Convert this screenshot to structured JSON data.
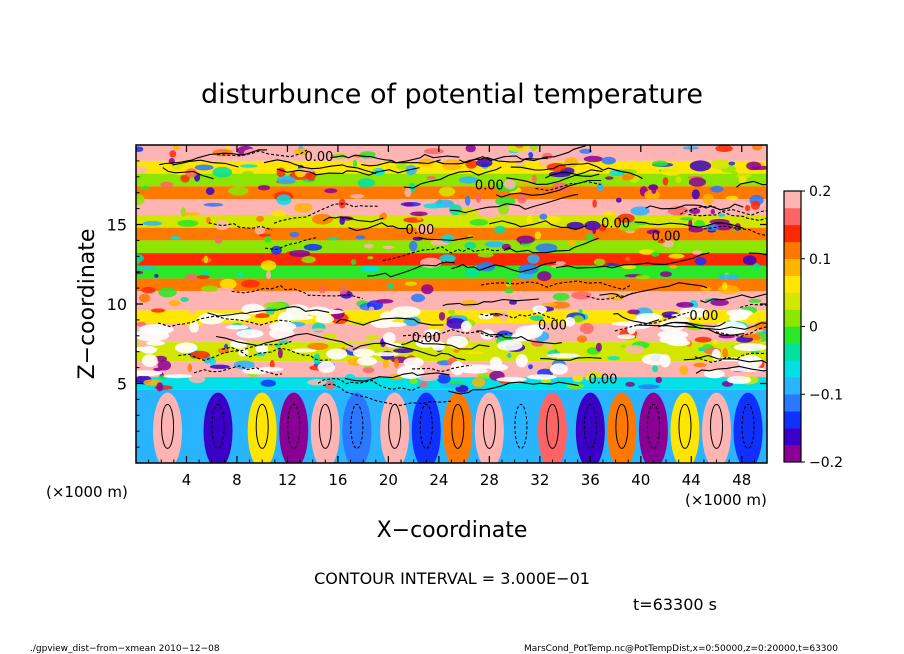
{
  "chart_data": {
    "type": "heatmap",
    "title": "disturbunce of potential temperature",
    "xlabel": "X−coordinate",
    "ylabel": "Z−coordinate",
    "x_unit_left": "(×1000 m)",
    "x_unit_right": "(×1000 m)",
    "xlim": [
      0,
      50
    ],
    "ylim": [
      0,
      20
    ],
    "x_ticks": [
      4,
      8,
      12,
      16,
      20,
      24,
      28,
      32,
      36,
      40,
      44,
      48
    ],
    "x_tick_labels": [
      "4",
      "8",
      "12",
      "16",
      "20",
      "24",
      "28",
      "32",
      "36",
      "40",
      "44",
      "48"
    ],
    "y_ticks": [
      5,
      10,
      15
    ],
    "y_tick_labels": [
      "5",
      "10",
      "15"
    ],
    "colorbar": {
      "min": -0.2,
      "max": 0.2,
      "tick_values": [
        0.2,
        0.1,
        0,
        -0.1,
        -0.2
      ],
      "tick_labels": [
        "0.2",
        "0.1",
        "0",
        "−0.1",
        "−0.2"
      ],
      "colors": [
        "#8a0096",
        "#3a00c8",
        "#1030ff",
        "#2a78ff",
        "#28b4ff",
        "#00e0e6",
        "#00e0a0",
        "#28e828",
        "#8ce600",
        "#d2e600",
        "#ffe600",
        "#ffb400",
        "#ff7800",
        "#ff2800",
        "#ff6464",
        "#ffb4b4"
      ]
    },
    "contour_label": "0.00",
    "contour_interval_text": "CONTOUR INTERVAL = 3.000E−01",
    "time_text": "t=63300 s",
    "footer_left": "./gpview_dist−from−xmean   2010−12−08",
    "footer_right": "MarsCond_PotTemp.nc@PotTempDist,x=0:50000,z=0:20000,t=63300",
    "bands": [
      {
        "z0": 19.0,
        "z1": 20.0,
        "value": 0.2
      },
      {
        "z0": 18.2,
        "z1": 19.0,
        "value": 0.05
      },
      {
        "z0": 17.4,
        "z1": 18.2,
        "value": 0.0
      },
      {
        "z0": 16.6,
        "z1": 17.4,
        "value": 0.1
      },
      {
        "z0": 15.6,
        "z1": 16.6,
        "value": 0.18
      },
      {
        "z0": 14.8,
        "z1": 15.6,
        "value": 0.04
      },
      {
        "z0": 14.0,
        "z1": 14.8,
        "value": 0.12
      },
      {
        "z0": 13.2,
        "z1": 14.0,
        "value": 0.02
      },
      {
        "z0": 12.4,
        "z1": 13.2,
        "value": 0.15
      },
      {
        "z0": 11.6,
        "z1": 12.4,
        "value": -0.02
      },
      {
        "z0": 10.8,
        "z1": 11.6,
        "value": 0.1
      },
      {
        "z0": 9.6,
        "z1": 10.8,
        "value": 0.2
      },
      {
        "z0": 8.8,
        "z1": 9.6,
        "value": 0.06
      },
      {
        "z0": 7.6,
        "z1": 8.8,
        "value": 0.2
      },
      {
        "z0": 6.4,
        "z1": 7.6,
        "value": 0.04
      },
      {
        "z0": 5.4,
        "z1": 6.4,
        "value": 0.2
      },
      {
        "z0": 4.6,
        "z1": 5.4,
        "value": -0.06
      },
      {
        "z0": 0.0,
        "z1": 4.6,
        "value": -0.1
      }
    ],
    "lower_cells": [
      {
        "x": 2.5,
        "value": 0.2
      },
      {
        "x": 6.5,
        "value": -0.16
      },
      {
        "x": 10.0,
        "value": 0.05
      },
      {
        "x": 12.5,
        "value": -0.18
      },
      {
        "x": 15.0,
        "value": 0.2
      },
      {
        "x": 17.5,
        "value": -0.12
      },
      {
        "x": 20.5,
        "value": 0.18
      },
      {
        "x": 23.0,
        "value": -0.15
      },
      {
        "x": 25.5,
        "value": 0.1
      },
      {
        "x": 28.0,
        "value": 0.2
      },
      {
        "x": 30.5,
        "value": -0.1
      },
      {
        "x": 33.0,
        "value": 0.17
      },
      {
        "x": 36.0,
        "value": -0.16
      },
      {
        "x": 38.5,
        "value": 0.12
      },
      {
        "x": 41.0,
        "value": -0.18
      },
      {
        "x": 43.5,
        "value": 0.06
      },
      {
        "x": 46.0,
        "value": 0.2
      },
      {
        "x": 48.5,
        "value": -0.14
      }
    ],
    "contour_label_positions": [
      {
        "x": 14.5,
        "z": 19.0
      },
      {
        "x": 28.0,
        "z": 17.2
      },
      {
        "x": 22.5,
        "z": 14.4
      },
      {
        "x": 38.0,
        "z": 14.8
      },
      {
        "x": 42.0,
        "z": 14.0
      },
      {
        "x": 33.0,
        "z": 8.4
      },
      {
        "x": 23.0,
        "z": 7.6
      },
      {
        "x": 37.0,
        "z": 5.0
      },
      {
        "x": 45.0,
        "z": 9.0
      }
    ]
  }
}
